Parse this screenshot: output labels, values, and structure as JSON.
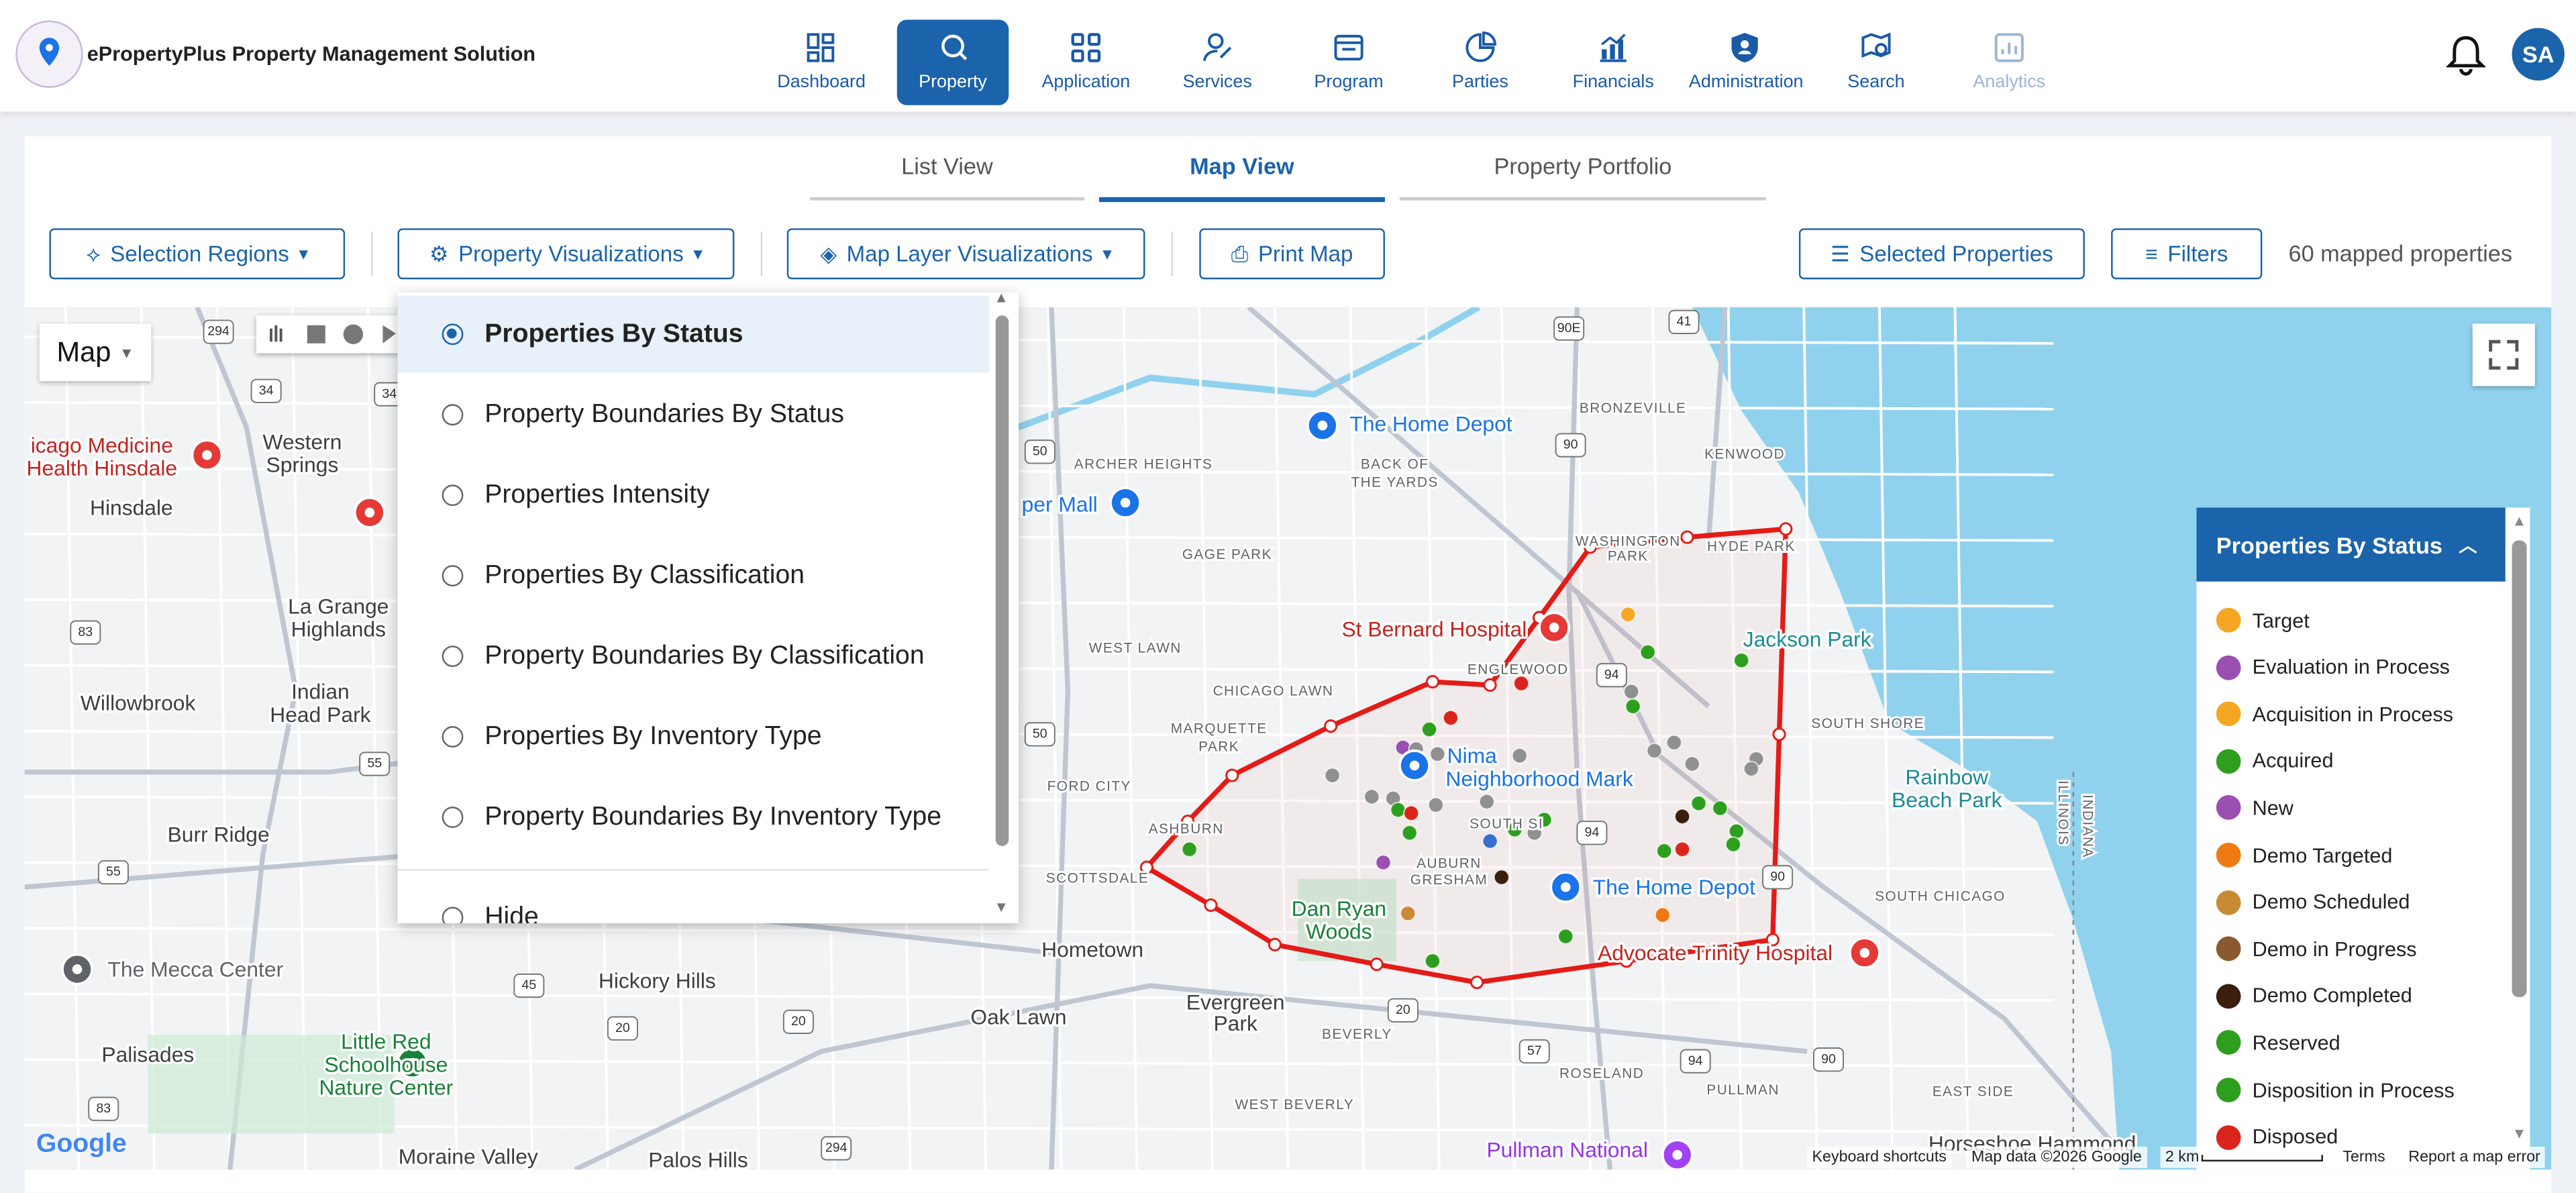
{
  "header": {
    "brand": "ePropertyPlus Property Management Solution",
    "avatar": "SA",
    "nav": [
      "Dashboard",
      "Property",
      "Application",
      "Services",
      "Program",
      "Parties",
      "Financials",
      "Administration",
      "Search",
      "Analytics"
    ]
  },
  "tabs": [
    "List View",
    "Map View",
    "Property Portfolio"
  ],
  "toolbar": {
    "buttons": [
      "Selection Regions",
      "Property Visualizations",
      "Map Layer Visualizations",
      "Print Map",
      "Selected Properties",
      "Filters"
    ],
    "mapped": "60 mapped properties"
  },
  "dropdown": {
    "options": [
      "Properties By Status",
      "Property Boundaries By Status",
      "Properties Intensity",
      "Properties By Classification",
      "Property Boundaries By Classification",
      "Properties By Inventory Type",
      "Property Boundaries By Inventory Type",
      "Hide"
    ]
  },
  "legend": {
    "title": "Properties By Status",
    "items": [
      {
        "label": "Target",
        "color": "#f5a623"
      },
      {
        "label": "Evaluation in Process",
        "color": "#9b4fb0"
      },
      {
        "label": "Acquisition in Process",
        "color": "#f5a623"
      },
      {
        "label": "Acquired",
        "color": "#2e9e1e"
      },
      {
        "label": "New",
        "color": "#9b4fb0"
      },
      {
        "label": "Demo Targeted",
        "color": "#ef7a12"
      },
      {
        "label": "Demo Scheduled",
        "color": "#c98a36"
      },
      {
        "label": "Demo in Progress",
        "color": "#8a5a2e"
      },
      {
        "label": "Demo Completed",
        "color": "#3a1e0e"
      },
      {
        "label": "Reserved",
        "color": "#2e9e1e"
      },
      {
        "label": "Disposition in Process",
        "color": "#2e9e1e"
      },
      {
        "label": "Disposed",
        "color": "#d9251c"
      }
    ]
  },
  "map": {
    "type_button": "Map",
    "labels": [
      "icago Medicine",
      "Health Hinsdale",
      "Western",
      "Springs",
      "Hinsdale",
      "La Grange",
      "Highlands",
      "Indian",
      "Head Park",
      "Willowbrook",
      "Burr Ridge",
      "The Mecca Center",
      "Hickory Hills",
      "Palisades",
      "Little Red",
      "Schoolhouse",
      "Nature Center",
      "Moraine Valley",
      "Palos Hills",
      "Hometown",
      "Oak Lawn",
      "Evergreen",
      "Park",
      "The Home Depot",
      "per Mall",
      "The Home Depot",
      "St Bernard Hospital",
      "Advocate Trinity Hospital",
      "Jackson Park",
      "Rainbow",
      "Beach Park",
      "Dan Ryan",
      "Woods",
      "Pullman National",
      "Horseshoe Hammond",
      "Nima",
      "Neighborhood Mark"
    ],
    "districts": [
      "ARCHER HEIGHTS",
      "BACK OF",
      "THE YARDS",
      "BRONZEVILLE",
      "KENWOOD",
      "WASHINGTON",
      "PARK",
      "HYDE PARK",
      "GAGE PARK",
      "WEST LAWN",
      "ENGLEWOOD",
      "CHICAGO LAWN",
      "MARQUETTE",
      "PARK",
      "SOUTH SHORE",
      "FORD CITY",
      "ASHBURN",
      "SCOTTSDALE",
      "AUBURN",
      "GRESHAM",
      "SOUTH CHICAGO",
      "BEVERLY",
      "ROSELAND",
      "PULLMAN",
      "EAST SIDE",
      "WEST BEVERLY",
      "SOUTH SI",
      "INDIANA",
      "ILLINOIS"
    ],
    "shields": [
      "294",
      "34",
      "34",
      "83",
      "55",
      "55",
      "45",
      "20",
      "20",
      "50",
      "50",
      "90E",
      "41",
      "90",
      "90",
      "94",
      "94",
      "57",
      "94",
      "20",
      "90",
      "294",
      "83"
    ],
    "footer": [
      "Keyboard shortcuts",
      "Map data ©2026 Google",
      "2 km",
      "Terms",
      "Report a map error"
    ],
    "logo": "Google"
  }
}
